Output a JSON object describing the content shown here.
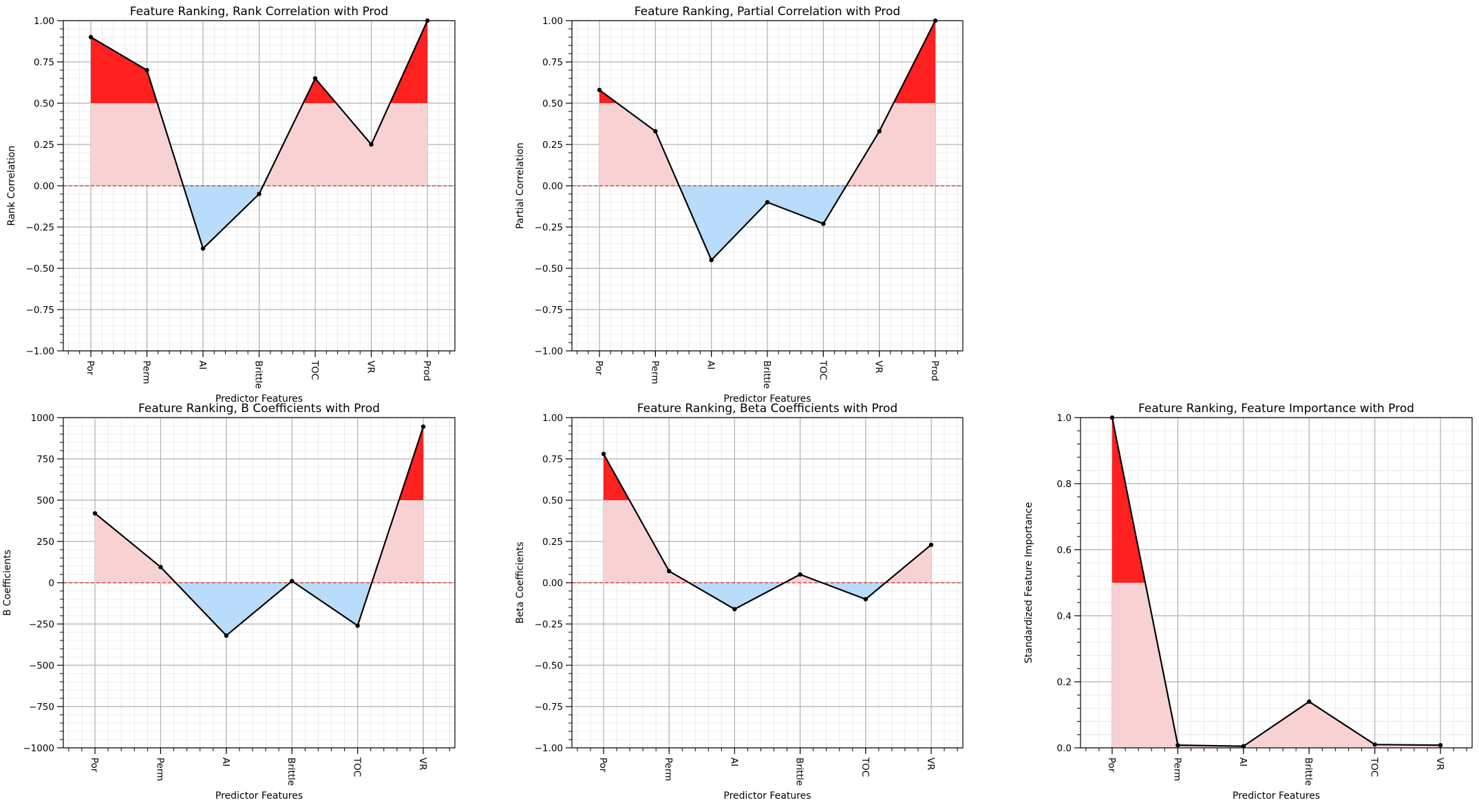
{
  "colors": {
    "pos_strong": "#ff2020",
    "pos_weak": "#f8d2d2",
    "neg": "#b8dcfa",
    "line": "#000000",
    "zero_line": "#d62728",
    "zero_dash": "#4a90d9",
    "grid_major": "#b0b0b0",
    "grid_minor": "#e6e6e6"
  },
  "chart_data": [
    {
      "type": "line",
      "title": "Feature Ranking, Rank Correlation with Prod",
      "xlabel": "Predictor Features",
      "ylabel": "Rank Correlation",
      "categories": [
        "Por",
        "Perm",
        "AI",
        "Brittle",
        "TOC",
        "VR",
        "Prod"
      ],
      "values": [
        0.9,
        0.7,
        -0.38,
        -0.05,
        0.65,
        0.25,
        1.0
      ],
      "ylim": [
        -1.0,
        1.0
      ],
      "yticks": [
        "1.00",
        "0.75",
        "0.50",
        "0.25",
        "0.00",
        "−0.25",
        "−0.50",
        "−0.75",
        "−1.00"
      ],
      "threshold": 0.5,
      "grid": true
    },
    {
      "type": "line",
      "title": "Feature Ranking, Partial Correlation with Prod",
      "xlabel": "Predictor Features",
      "ylabel": "Partial Correlation",
      "categories": [
        "Por",
        "Perm",
        "AI",
        "Brittle",
        "TOC",
        "VR",
        "Prod"
      ],
      "values": [
        0.58,
        0.33,
        -0.45,
        -0.1,
        -0.23,
        0.33,
        1.0
      ],
      "ylim": [
        -1.0,
        1.0
      ],
      "yticks": [
        "1.00",
        "0.75",
        "0.50",
        "0.25",
        "0.00",
        "−0.25",
        "−0.50",
        "−0.75",
        "−1.00"
      ],
      "threshold": 0.5,
      "grid": true
    },
    {
      "type": "line",
      "title": "Feature Ranking, B Coefficients with Prod",
      "xlabel": "Predictor Features",
      "ylabel": "B Coefficients",
      "categories": [
        "Por",
        "Perm",
        "AI",
        "Brittle",
        "TOC",
        "VR"
      ],
      "values": [
        420,
        95,
        -320,
        10,
        -260,
        945
      ],
      "ylim": [
        -1000,
        1000
      ],
      "yticks": [
        "1000",
        "750",
        "500",
        "250",
        "0",
        "−250",
        "−500",
        "−750",
        "−1000"
      ],
      "threshold": 500,
      "grid": true
    },
    {
      "type": "line",
      "title": "Feature Ranking, Beta Coefficients with Prod",
      "xlabel": "Predictor Features",
      "ylabel": "Beta Coefficients",
      "categories": [
        "Por",
        "Perm",
        "AI",
        "Brittle",
        "TOC",
        "VR"
      ],
      "values": [
        0.78,
        0.07,
        -0.16,
        0.05,
        -0.1,
        0.23
      ],
      "ylim": [
        -1.0,
        1.0
      ],
      "yticks": [
        "1.00",
        "0.75",
        "0.50",
        "0.25",
        "0.00",
        "−0.25",
        "−0.50",
        "−0.75",
        "−1.00"
      ],
      "threshold": 0.5,
      "grid": true
    },
    {
      "type": "line",
      "title": "Feature Ranking, Feature Importance with Prod",
      "xlabel": "Predictor Features",
      "ylabel": "Standardized Feature Importance",
      "categories": [
        "Por",
        "Perm",
        "AI",
        "Brittle",
        "TOC",
        "VR"
      ],
      "values": [
        1.0,
        0.008,
        0.005,
        0.14,
        0.01,
        0.008
      ],
      "ylim": [
        0.0,
        1.0
      ],
      "yticks": [
        "1.0",
        "0.8",
        "0.6",
        "0.4",
        "0.2",
        "0.0"
      ],
      "threshold": 0.5,
      "grid": true
    }
  ]
}
